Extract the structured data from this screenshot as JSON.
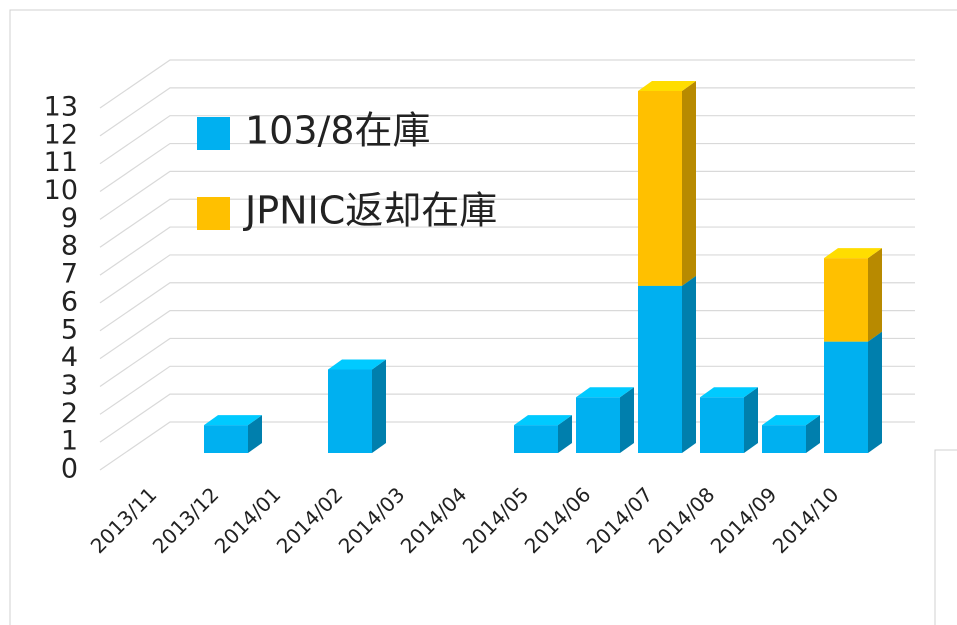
{
  "chart_data": {
    "type": "bar3d_stacked",
    "categories": [
      "2013/11",
      "2013/12",
      "2014/01",
      "2014/02",
      "2014/03",
      "2014/04",
      "2014/05",
      "2014/06",
      "2014/07",
      "2014/08",
      "2014/09",
      "2014/10"
    ],
    "series": [
      {
        "name": "103/8在庫",
        "color": "#00b0f0",
        "values": [
          0,
          1,
          0,
          3,
          0,
          0,
          1,
          2,
          6,
          2,
          1,
          4
        ]
      },
      {
        "name": "JPNIC返却在庫",
        "color": "#ffc000",
        "values": [
          0,
          0,
          0,
          0,
          0,
          0,
          0,
          0,
          7,
          0,
          0,
          3
        ]
      }
    ],
    "ylim": [
      0,
      13
    ],
    "yticks": [
      0,
      1,
      2,
      3,
      4,
      5,
      6,
      7,
      8,
      9,
      10,
      11,
      12,
      13
    ],
    "grid": true,
    "legend": "top-left"
  }
}
